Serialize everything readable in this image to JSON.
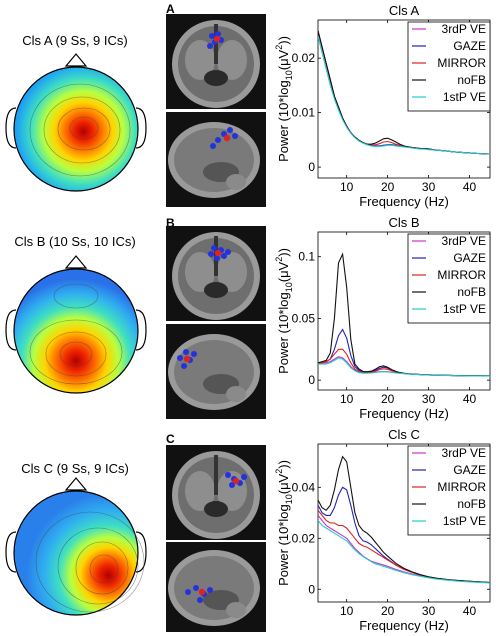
{
  "rows": [
    {
      "cluster_label": "Cls A (9 Ss, 9 ICs)",
      "panel_letter": "A"
    },
    {
      "cluster_label": "Cls B (10 Ss, 10 ICs)",
      "panel_letter": "B"
    },
    {
      "cluster_label": "Cls C (9 Ss, 9 ICs)",
      "panel_letter": "C"
    }
  ],
  "chart_data": [
    {
      "type": "line",
      "title": "Cls A",
      "xlabel": "Frequency (Hz)",
      "ylabel": "Power (10*log10(μV2))",
      "xlim": [
        3,
        45
      ],
      "ylim": [
        -0.002,
        0.027
      ],
      "xticks": [
        10,
        20,
        30,
        40
      ],
      "yticks": [
        0,
        0.01,
        0.02
      ],
      "ytick_labels": [
        "0",
        "0.01",
        "0.02"
      ],
      "legend_position": "top-right",
      "x": [
        3,
        4,
        5,
        6,
        7,
        8,
        9,
        10,
        11,
        12,
        13,
        14,
        15,
        16,
        17,
        18,
        19,
        20,
        21,
        22,
        23,
        24,
        25,
        26,
        27,
        28,
        29,
        30,
        32,
        34,
        36,
        38,
        40,
        42,
        45
      ],
      "series": [
        {
          "name": "3rdP VE",
          "color": "#cc33cc",
          "values": [
            0.025,
            0.022,
            0.019,
            0.016,
            0.013,
            0.011,
            0.009,
            0.0075,
            0.0063,
            0.0055,
            0.0049,
            0.0045,
            0.0042,
            0.004,
            0.0039,
            0.0039,
            0.004,
            0.0041,
            0.0041,
            0.004,
            0.0039,
            0.0038,
            0.0037,
            0.0036,
            0.0035,
            0.0034,
            0.0034,
            0.0033,
            0.0031,
            0.003,
            0.0028,
            0.0027,
            0.0026,
            0.0025,
            0.0024
          ]
        },
        {
          "name": "GAZE",
          "color": "#2222bb",
          "values": [
            0.025,
            0.022,
            0.019,
            0.016,
            0.013,
            0.011,
            0.009,
            0.0075,
            0.0063,
            0.0055,
            0.0049,
            0.0045,
            0.0042,
            0.004,
            0.0039,
            0.0039,
            0.004,
            0.0041,
            0.0041,
            0.004,
            0.0039,
            0.0038,
            0.0037,
            0.0036,
            0.0035,
            0.0034,
            0.0034,
            0.0033,
            0.0031,
            0.003,
            0.0028,
            0.0027,
            0.0026,
            0.0025,
            0.0024
          ]
        },
        {
          "name": "MIRROR",
          "color": "#dd2222",
          "values": [
            0.025,
            0.022,
            0.019,
            0.016,
            0.013,
            0.011,
            0.009,
            0.0075,
            0.0063,
            0.0055,
            0.0049,
            0.0045,
            0.0042,
            0.0041,
            0.0041,
            0.0043,
            0.0046,
            0.0047,
            0.0045,
            0.0042,
            0.004,
            0.0038,
            0.0037,
            0.0036,
            0.0035,
            0.0034,
            0.0034,
            0.0033,
            0.0031,
            0.003,
            0.0028,
            0.0027,
            0.0026,
            0.0025,
            0.0024
          ]
        },
        {
          "name": "noFB",
          "color": "#111111",
          "values": [
            0.025,
            0.022,
            0.019,
            0.016,
            0.013,
            0.011,
            0.009,
            0.0075,
            0.0063,
            0.0055,
            0.0049,
            0.0045,
            0.0042,
            0.0042,
            0.0044,
            0.0048,
            0.0052,
            0.0053,
            0.005,
            0.0046,
            0.0042,
            0.0039,
            0.0037,
            0.0036,
            0.0035,
            0.0034,
            0.0034,
            0.0033,
            0.0031,
            0.003,
            0.0028,
            0.0027,
            0.0026,
            0.0025,
            0.0024
          ]
        },
        {
          "name": "1stP VE",
          "color": "#22cccc",
          "values": [
            0.024,
            0.021,
            0.018,
            0.015,
            0.0125,
            0.0105,
            0.0087,
            0.0073,
            0.0062,
            0.0054,
            0.0048,
            0.0044,
            0.0041,
            0.0039,
            0.0038,
            0.0038,
            0.0039,
            0.004,
            0.004,
            0.0039,
            0.0038,
            0.0037,
            0.0036,
            0.0035,
            0.0034,
            0.0033,
            0.0033,
            0.0032,
            0.0031,
            0.003,
            0.0028,
            0.0027,
            0.0026,
            0.0025,
            0.0024
          ]
        }
      ]
    },
    {
      "type": "line",
      "title": "Cls B",
      "xlabel": "Frequency (Hz)",
      "ylabel": "Power (10*log10(μV2))",
      "xlim": [
        3,
        45
      ],
      "ylim": [
        -0.008,
        0.12
      ],
      "xticks": [
        10,
        20,
        30,
        40
      ],
      "yticks": [
        0,
        0.05,
        0.1
      ],
      "ytick_labels": [
        "0",
        "0.05",
        "0.1"
      ],
      "legend_position": "top-right",
      "x": [
        3,
        4,
        5,
        6,
        7,
        8,
        9,
        10,
        11,
        12,
        13,
        14,
        15,
        16,
        17,
        18,
        19,
        20,
        21,
        22,
        23,
        24,
        25,
        26,
        28,
        30,
        32,
        35,
        38,
        41,
        45
      ],
      "series": [
        {
          "name": "3rdP VE",
          "color": "#cc33cc",
          "values": [
            0.014,
            0.014,
            0.014,
            0.015,
            0.017,
            0.019,
            0.018,
            0.015,
            0.011,
            0.008,
            0.0065,
            0.006,
            0.006,
            0.0062,
            0.0065,
            0.0068,
            0.007,
            0.0068,
            0.0064,
            0.006,
            0.0056,
            0.0053,
            0.005,
            0.0048,
            0.0045,
            0.0042,
            0.004,
            0.0038,
            0.0036,
            0.0035,
            0.0034
          ]
        },
        {
          "name": "GAZE",
          "color": "#2222bb",
          "values": [
            0.014,
            0.014,
            0.015,
            0.017,
            0.025,
            0.036,
            0.041,
            0.034,
            0.02,
            0.011,
            0.008,
            0.0068,
            0.0065,
            0.0068,
            0.008,
            0.0095,
            0.0105,
            0.0098,
            0.0082,
            0.007,
            0.006,
            0.0055,
            0.0051,
            0.0049,
            0.0045,
            0.0042,
            0.004,
            0.0038,
            0.0036,
            0.0035,
            0.0034
          ]
        },
        {
          "name": "MIRROR",
          "color": "#dd2222",
          "values": [
            0.014,
            0.014,
            0.015,
            0.017,
            0.021,
            0.025,
            0.025,
            0.021,
            0.014,
            0.009,
            0.007,
            0.0062,
            0.006,
            0.0063,
            0.0072,
            0.0085,
            0.0092,
            0.0088,
            0.0076,
            0.0066,
            0.0058,
            0.0054,
            0.005,
            0.0048,
            0.0045,
            0.0042,
            0.004,
            0.0038,
            0.0036,
            0.0035,
            0.0034
          ]
        },
        {
          "name": "noFB",
          "color": "#111111",
          "values": [
            0.014,
            0.015,
            0.016,
            0.022,
            0.05,
            0.095,
            0.102,
            0.075,
            0.033,
            0.013,
            0.009,
            0.007,
            0.0068,
            0.0072,
            0.0088,
            0.0108,
            0.0116,
            0.0105,
            0.0085,
            0.0071,
            0.0061,
            0.0055,
            0.0051,
            0.0049,
            0.0045,
            0.0042,
            0.004,
            0.0038,
            0.0036,
            0.0035,
            0.0034
          ]
        },
        {
          "name": "1stP VE",
          "color": "#22cccc",
          "values": [
            0.013,
            0.013,
            0.013,
            0.014,
            0.016,
            0.018,
            0.017,
            0.014,
            0.01,
            0.0075,
            0.006,
            0.0056,
            0.0056,
            0.0058,
            0.0062,
            0.0066,
            0.0068,
            0.0066,
            0.0062,
            0.0058,
            0.0055,
            0.0052,
            0.0049,
            0.0047,
            0.0044,
            0.0041,
            0.0039,
            0.0037,
            0.0035,
            0.0034,
            0.0033
          ]
        }
      ]
    },
    {
      "type": "line",
      "title": "Cls C",
      "xlabel": "Frequency (Hz)",
      "ylabel": "Power (10*log10(μV2))",
      "xlim": [
        3,
        45
      ],
      "ylim": [
        -0.005,
        0.057
      ],
      "xticks": [
        10,
        20,
        30,
        40
      ],
      "yticks": [
        0,
        0.02,
        0.04
      ],
      "ytick_labels": [
        "0",
        "0.02",
        "0.04"
      ],
      "legend_position": "top-right",
      "x": [
        3,
        4,
        5,
        6,
        7,
        8,
        9,
        10,
        11,
        12,
        13,
        14,
        15,
        16,
        17,
        18,
        19,
        20,
        22,
        24,
        26,
        28,
        30,
        32,
        35,
        38,
        41,
        45
      ],
      "series": [
        {
          "name": "3rdP VE",
          "color": "#cc33cc",
          "values": [
            0.029,
            0.027,
            0.025,
            0.024,
            0.023,
            0.022,
            0.021,
            0.02,
            0.018,
            0.016,
            0.0145,
            0.013,
            0.012,
            0.011,
            0.0105,
            0.01,
            0.0095,
            0.009,
            0.0078,
            0.0068,
            0.006,
            0.0053,
            0.0046,
            0.0041,
            0.0036,
            0.0032,
            0.0029,
            0.0026
          ]
        },
        {
          "name": "GAZE",
          "color": "#2222bb",
          "values": [
            0.033,
            0.03,
            0.029,
            0.029,
            0.032,
            0.037,
            0.04,
            0.039,
            0.033,
            0.026,
            0.021,
            0.019,
            0.0185,
            0.0175,
            0.016,
            0.0145,
            0.013,
            0.0118,
            0.0095,
            0.0078,
            0.0066,
            0.0056,
            0.0048,
            0.0043,
            0.0037,
            0.0033,
            0.003,
            0.0026
          ]
        },
        {
          "name": "MIRROR",
          "color": "#dd2222",
          "values": [
            0.031,
            0.029,
            0.027,
            0.026,
            0.026,
            0.025,
            0.025,
            0.024,
            0.022,
            0.02,
            0.018,
            0.017,
            0.0165,
            0.0155,
            0.0145,
            0.0135,
            0.0125,
            0.0115,
            0.0095,
            0.0078,
            0.0066,
            0.0056,
            0.0048,
            0.0043,
            0.0037,
            0.0033,
            0.003,
            0.0026
          ]
        },
        {
          "name": "noFB",
          "color": "#111111",
          "values": [
            0.035,
            0.032,
            0.031,
            0.033,
            0.039,
            0.047,
            0.052,
            0.05,
            0.04,
            0.03,
            0.025,
            0.023,
            0.022,
            0.0205,
            0.0185,
            0.0165,
            0.0145,
            0.013,
            0.0102,
            0.0082,
            0.0068,
            0.0057,
            0.0049,
            0.0043,
            0.0037,
            0.0033,
            0.003,
            0.0026
          ]
        },
        {
          "name": "1stP VE",
          "color": "#22cccc",
          "values": [
            0.027,
            0.025,
            0.024,
            0.023,
            0.022,
            0.021,
            0.02,
            0.019,
            0.0172,
            0.0155,
            0.014,
            0.0128,
            0.0118,
            0.0108,
            0.01,
            0.0095,
            0.009,
            0.0085,
            0.0074,
            0.0065,
            0.0057,
            0.0051,
            0.0045,
            0.004,
            0.0035,
            0.0031,
            0.0028,
            0.0025
          ]
        }
      ]
    }
  ]
}
